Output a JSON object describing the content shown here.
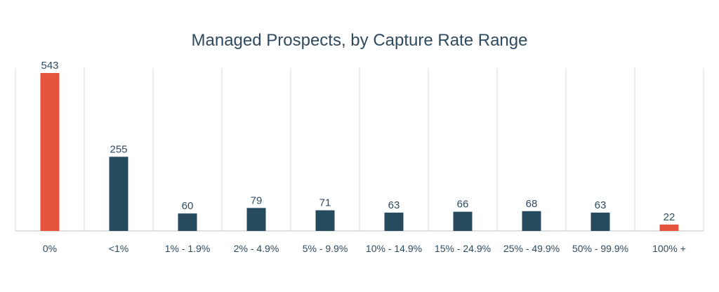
{
  "chart_data": {
    "type": "bar",
    "title": "Managed Prospects, by Capture Rate Range",
    "xlabel": "",
    "ylabel": "",
    "categories": [
      "0%",
      "<1%",
      "1% - 1.9%",
      "2% - 4.9%",
      "5% - 9.9%",
      "10% - 14.9%",
      "15% - 24.9%",
      "25% - 49.9%",
      "50% - 99.9%",
      "100% +"
    ],
    "values": [
      543,
      255,
      60,
      79,
      71,
      63,
      66,
      68,
      63,
      22
    ],
    "ylim": [
      0,
      600
    ],
    "grid": "vertical category separators",
    "highlighted_categories": [
      "0%",
      "100% +"
    ],
    "colors": {
      "default_bar": "#264a5e",
      "highlight_bar": "#e5533c",
      "text": "#2e4a5f",
      "grid": "#d9d9d9",
      "axis": "#bfbfbf"
    }
  }
}
